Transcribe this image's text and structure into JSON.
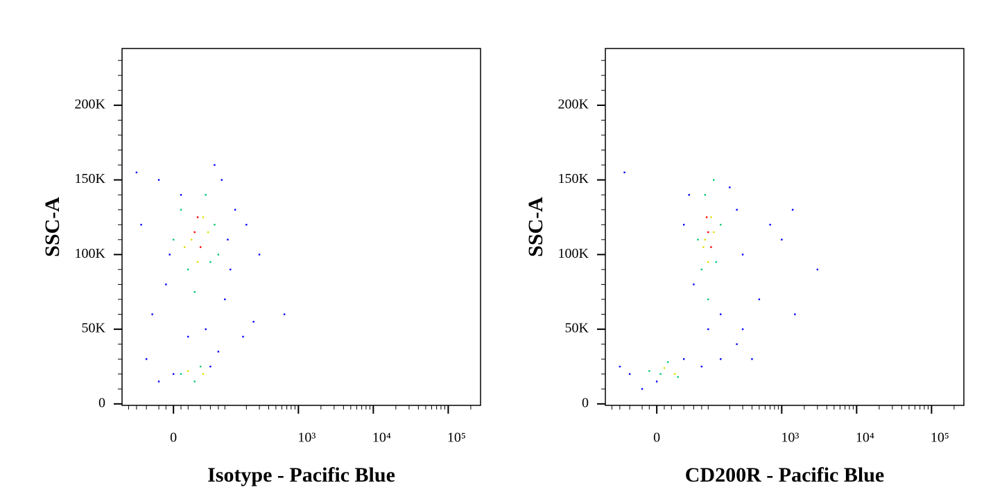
{
  "chart_data": [
    {
      "type": "scatter",
      "xlabel": "Isotype - Pacific Blue",
      "ylabel": "SSC-A",
      "xscale": "biexponential",
      "xlim": [
        -100,
        270000
      ],
      "ylim": [
        -1000,
        238000
      ],
      "xticks": [
        0,
        {
          "value": 1000,
          "label": "10³"
        },
        {
          "value": 10000,
          "label": "10⁴"
        },
        {
          "value": 100000,
          "label": "10⁵"
        }
      ],
      "xminorticks": [
        -80,
        -60,
        -40,
        -20,
        -10,
        10,
        20,
        40,
        60,
        80,
        100,
        200,
        300,
        400,
        500,
        600,
        700,
        800,
        900,
        2000,
        3000,
        4000,
        5000,
        6000,
        7000,
        8000,
        9000,
        20000,
        30000,
        40000,
        50000,
        60000,
        70000,
        80000,
        90000,
        200000
      ],
      "yticks": [
        0,
        {
          "value": 50000,
          "label": "50K"
        },
        {
          "value": 100000,
          "label": "100K"
        },
        {
          "value": 150000,
          "label": "150K"
        },
        {
          "value": 200000,
          "label": "200K"
        }
      ],
      "yminorticks": [
        10000,
        20000,
        30000,
        40000,
        60000,
        70000,
        80000,
        90000,
        110000,
        120000,
        130000,
        140000,
        160000,
        170000,
        180000,
        190000,
        210000,
        220000,
        230000
      ],
      "series": [
        {
          "color": "#0000ff",
          "x": [
            -40,
            -20,
            0,
            60,
            80,
            -30,
            -10,
            100,
            120,
            -50,
            -20,
            90,
            140,
            200,
            300,
            650,
            250,
            180,
            -60,
            70,
            20,
            50,
            -5,
            110,
            10
          ],
          "values": [
            30000,
            15000,
            20000,
            25000,
            35000,
            60000,
            80000,
            70000,
            90000,
            120000,
            150000,
            150000,
            130000,
            120000,
            100000,
            60000,
            55000,
            45000,
            155000,
            160000,
            45000,
            50000,
            100000,
            110000,
            140000
          ]
        },
        {
          "color": "#00c870",
          "x": [
            10,
            40,
            30,
            20,
            60,
            10,
            50,
            70,
            0,
            80,
            30
          ],
          "values": [
            20000,
            25000,
            15000,
            90000,
            95000,
            130000,
            140000,
            120000,
            110000,
            100000,
            75000
          ]
        },
        {
          "color": "#e0e000",
          "x": [
            25,
            45,
            35,
            15,
            55,
            20,
            45
          ],
          "values": [
            110000,
            125000,
            95000,
            105000,
            115000,
            22000,
            20000
          ]
        },
        {
          "color": "#ff0000",
          "x": [
            30,
            40,
            35
          ],
          "values": [
            115000,
            105000,
            125000
          ]
        }
      ]
    },
    {
      "type": "scatter",
      "xlabel": "CD200R - Pacific Blue",
      "ylabel": "SSC-A",
      "xscale": "biexponential",
      "xlim": [
        -100,
        270000
      ],
      "ylim": [
        -1000,
        238000
      ],
      "xticks": [
        0,
        {
          "value": 1000,
          "label": "10³"
        },
        {
          "value": 10000,
          "label": "10⁴"
        },
        {
          "value": 100000,
          "label": "10⁵"
        }
      ],
      "xminorticks": [
        -80,
        -60,
        -40,
        -20,
        -10,
        10,
        20,
        40,
        60,
        80,
        100,
        200,
        300,
        400,
        500,
        600,
        700,
        800,
        900,
        2000,
        3000,
        4000,
        5000,
        6000,
        7000,
        8000,
        9000,
        20000,
        30000,
        40000,
        50000,
        60000,
        70000,
        80000,
        90000,
        200000
      ],
      "yticks": [
        0,
        {
          "value": 50000,
          "label": "50K"
        },
        {
          "value": 100000,
          "label": "100K"
        },
        {
          "value": 150000,
          "label": "150K"
        },
        {
          "value": 200000,
          "label": "200K"
        }
      ],
      "yminorticks": [
        10000,
        20000,
        30000,
        40000,
        60000,
        70000,
        80000,
        90000,
        110000,
        120000,
        130000,
        140000,
        160000,
        170000,
        180000,
        190000,
        210000,
        220000,
        230000
      ],
      "series": [
        {
          "color": "#0000ff",
          "x": [
            -40,
            -60,
            -20,
            0,
            40,
            80,
            150,
            250,
            400,
            300,
            500,
            1000,
            1500,
            3000,
            1400,
            -50,
            40,
            50,
            200,
            250,
            60,
            300,
            700,
            150,
            100
          ],
          "values": [
            20000,
            25000,
            10000,
            15000,
            30000,
            25000,
            30000,
            40000,
            30000,
            50000,
            70000,
            110000,
            60000,
            90000,
            130000,
            155000,
            120000,
            140000,
            145000,
            130000,
            80000,
            100000,
            120000,
            60000,
            50000
          ]
        },
        {
          "color": "#00c870",
          "x": [
            5,
            15,
            -10,
            30,
            80,
            130,
            90,
            120,
            70,
            150,
            100
          ],
          "values": [
            20000,
            28000,
            22000,
            18000,
            90000,
            95000,
            140000,
            150000,
            110000,
            120000,
            70000
          ]
        },
        {
          "color": "#e0e000",
          "x": [
            90,
            110,
            100,
            85,
            120,
            10,
            25
          ],
          "values": [
            110000,
            125000,
            95000,
            105000,
            115000,
            24000,
            20000
          ]
        },
        {
          "color": "#ff0000",
          "x": [
            100,
            110,
            95
          ],
          "values": [
            115000,
            105000,
            125000
          ]
        }
      ]
    }
  ]
}
